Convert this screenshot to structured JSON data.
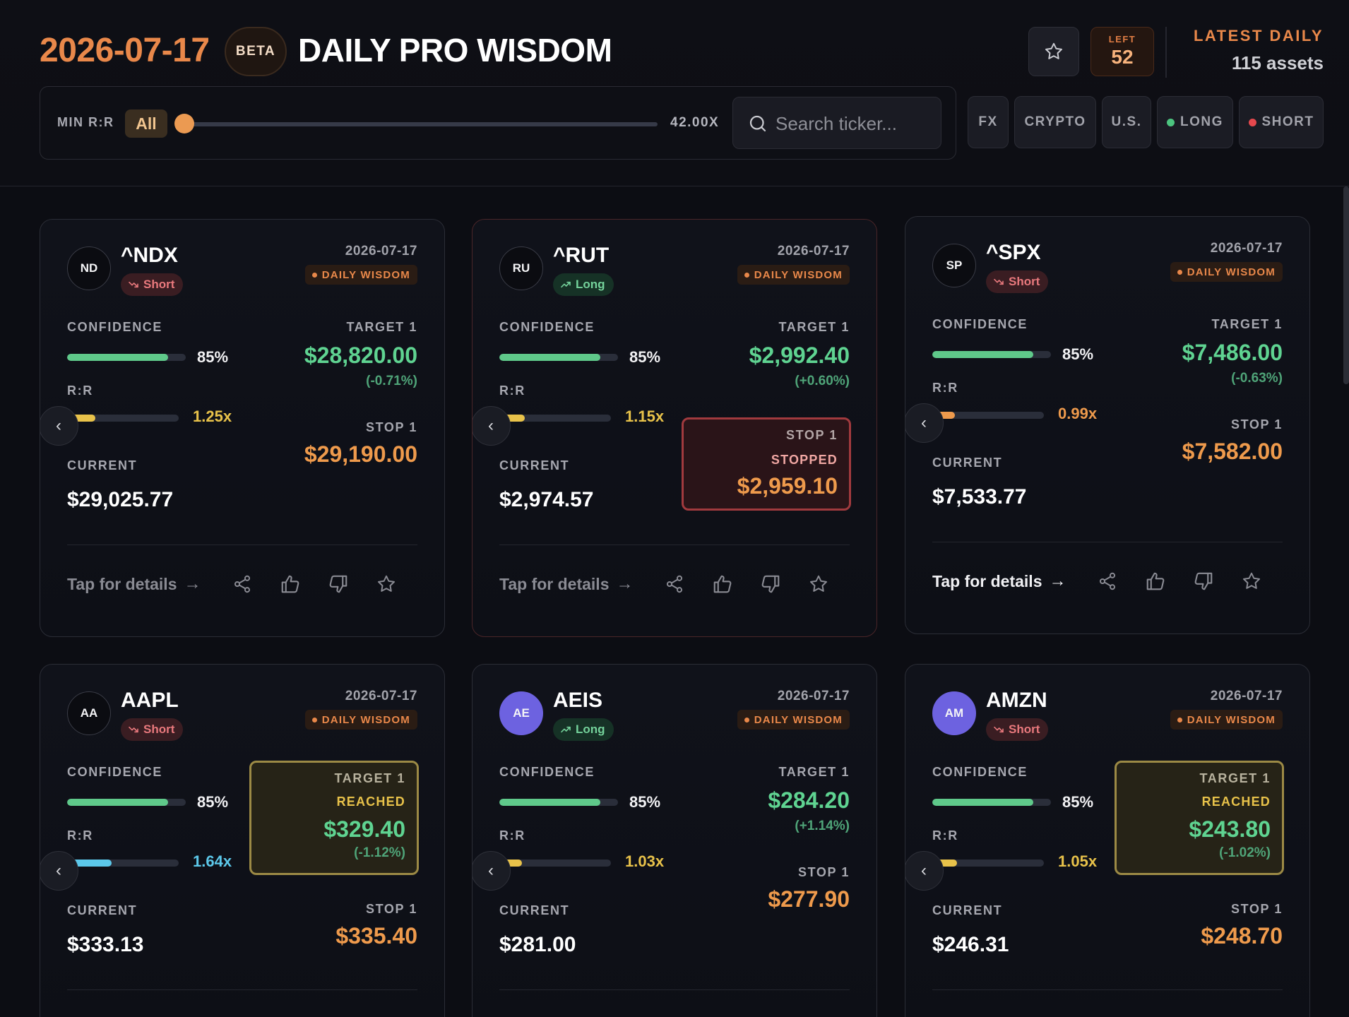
{
  "header": {
    "date": "2026-07-17",
    "beta": "BETA",
    "title": "DAILY PRO WISDOM",
    "left_label": "LEFT",
    "left_count": "52",
    "latest_label": "LATEST DAILY",
    "assets": "115 assets"
  },
  "filters": {
    "min_rr_label": "MIN R:R",
    "all_label": "All",
    "max_rr": "42.00X",
    "search_placeholder": "Search ticker...",
    "chips": [
      "FX",
      "CRYPTO",
      "U.S.",
      "LONG",
      "SHORT"
    ],
    "long_dot_color": "#4cc47f",
    "short_dot_color": "#e5484d"
  },
  "labels": {
    "confidence": "CONFIDENCE",
    "rr": "R:R",
    "current": "CURRENT",
    "target1": "TARGET 1",
    "stop1": "STOP 1",
    "stopped": "STOPPED",
    "reached": "REACHED",
    "tap": "Tap for details",
    "daily_wisdom": "DAILY WISDOM"
  },
  "cards": [
    {
      "initials": "ND",
      "symbol": "^NDX",
      "direction": "Short",
      "date": "2026-07-17",
      "confidence": "85%",
      "confidence_fraction": 0.85,
      "rr": "1.25x",
      "rr_fraction": 0.25,
      "rr_color": "#e8c24a",
      "current": "$29,025.77",
      "target": "$28,820.00",
      "target_change": "(-0.71%)",
      "stop": "$29,190.00",
      "status": "open"
    },
    {
      "initials": "RU",
      "symbol": "^RUT",
      "direction": "Long",
      "date": "2026-07-17",
      "confidence": "85%",
      "confidence_fraction": 0.85,
      "rr": "1.15x",
      "rr_fraction": 0.23,
      "rr_color": "#e8c24a",
      "current": "$2,974.57",
      "target": "$2,992.40",
      "target_change": "(+0.60%)",
      "stop": "$2,959.10",
      "status": "stopped"
    },
    {
      "initials": "SP",
      "symbol": "^SPX",
      "direction": "Short",
      "date": "2026-07-17",
      "confidence": "85%",
      "confidence_fraction": 0.85,
      "rr": "0.99x",
      "rr_fraction": 0.2,
      "rr_color": "#ee9a4c",
      "current": "$7,533.77",
      "target": "$7,486.00",
      "target_change": "(-0.63%)",
      "stop": "$7,582.00",
      "status": "open"
    },
    {
      "initials": "AA",
      "symbol": "AAPL",
      "direction": "Short",
      "date": "2026-07-17",
      "confidence": "85%",
      "confidence_fraction": 0.85,
      "rr": "1.64x",
      "rr_fraction": 0.4,
      "rr_color": "#5cc8ea",
      "current": "$333.13",
      "target": "$329.40",
      "target_change": "(-1.12%)",
      "stop": "$335.40",
      "status": "reached"
    },
    {
      "initials": "AE",
      "symbol": "AEIS",
      "direction": "Long",
      "date": "2026-07-17",
      "confidence": "85%",
      "confidence_fraction": 0.85,
      "rr": "1.03x",
      "rr_fraction": 0.2,
      "rr_color": "#e8c24a",
      "current": "$281.00",
      "target": "$284.20",
      "target_change": "(+1.14%)",
      "stop": "$277.90",
      "status": "open"
    },
    {
      "initials": "AM",
      "symbol": "AMZN",
      "direction": "Short",
      "date": "2026-07-17",
      "confidence": "85%",
      "confidence_fraction": 0.85,
      "rr": "1.05x",
      "rr_fraction": 0.22,
      "rr_color": "#e8c24a",
      "current": "$246.31",
      "target": "$243.80",
      "target_change": "(-1.02%)",
      "stop": "$248.70",
      "status": "reached"
    }
  ],
  "colors": {
    "accent": "#e9884a",
    "confidence_bar": "#5fc98a",
    "target_green": "#5fd391",
    "stop_orange": "#ee9a4c",
    "avatar_purple": "#6d62e0"
  }
}
